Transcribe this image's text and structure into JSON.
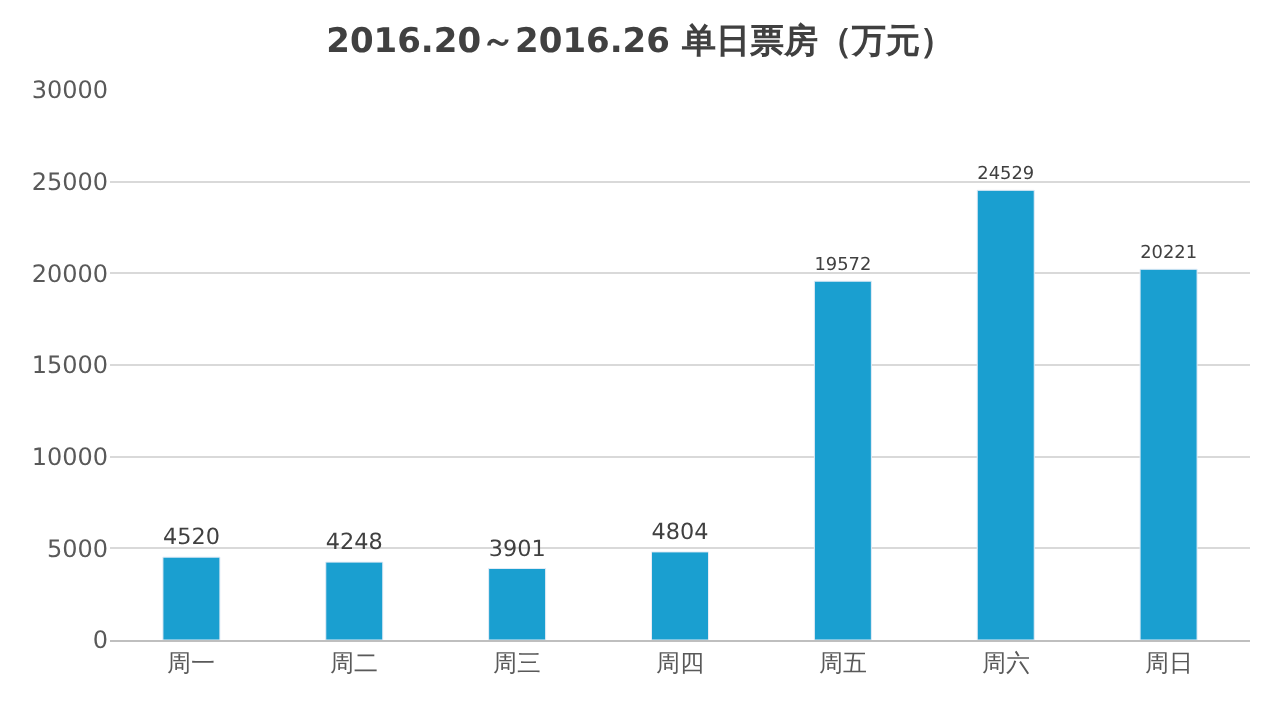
{
  "chart_data": {
    "type": "bar",
    "title": "2016.20～2016.26 单日票房（万元）",
    "categories": [
      "周一",
      "周二",
      "周三",
      "周四",
      "周五",
      "周六",
      "周日"
    ],
    "values": [
      4520,
      4248,
      3901,
      4804,
      19572,
      24529,
      20221
    ],
    "color": "#1a9fd0",
    "ylim": [
      0,
      30000
    ],
    "yticks": [
      0,
      5000,
      10000,
      15000,
      20000,
      25000,
      30000
    ],
    "grid": "y",
    "data_labels": true
  }
}
